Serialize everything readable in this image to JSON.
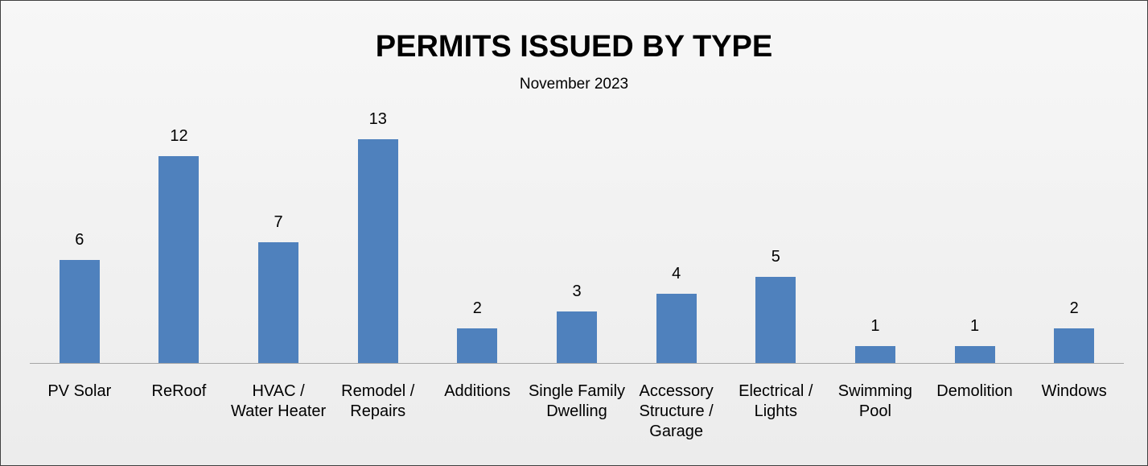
{
  "chart_data": {
    "type": "bar",
    "title": "PERMITS ISSUED BY TYPE",
    "subtitle": "November 2023",
    "categories": [
      "PV Solar",
      "ReRoof",
      "HVAC / Water Heater",
      "Remodel / Repairs",
      "Additions",
      "Single Family Dwelling",
      "Accessory Structure / Garage",
      "Electrical / Lights",
      "Swimming Pool",
      "Demolition",
      "Windows"
    ],
    "values": [
      6,
      12,
      7,
      13,
      2,
      3,
      4,
      5,
      1,
      1,
      2
    ],
    "color": "#4f81bd"
  }
}
